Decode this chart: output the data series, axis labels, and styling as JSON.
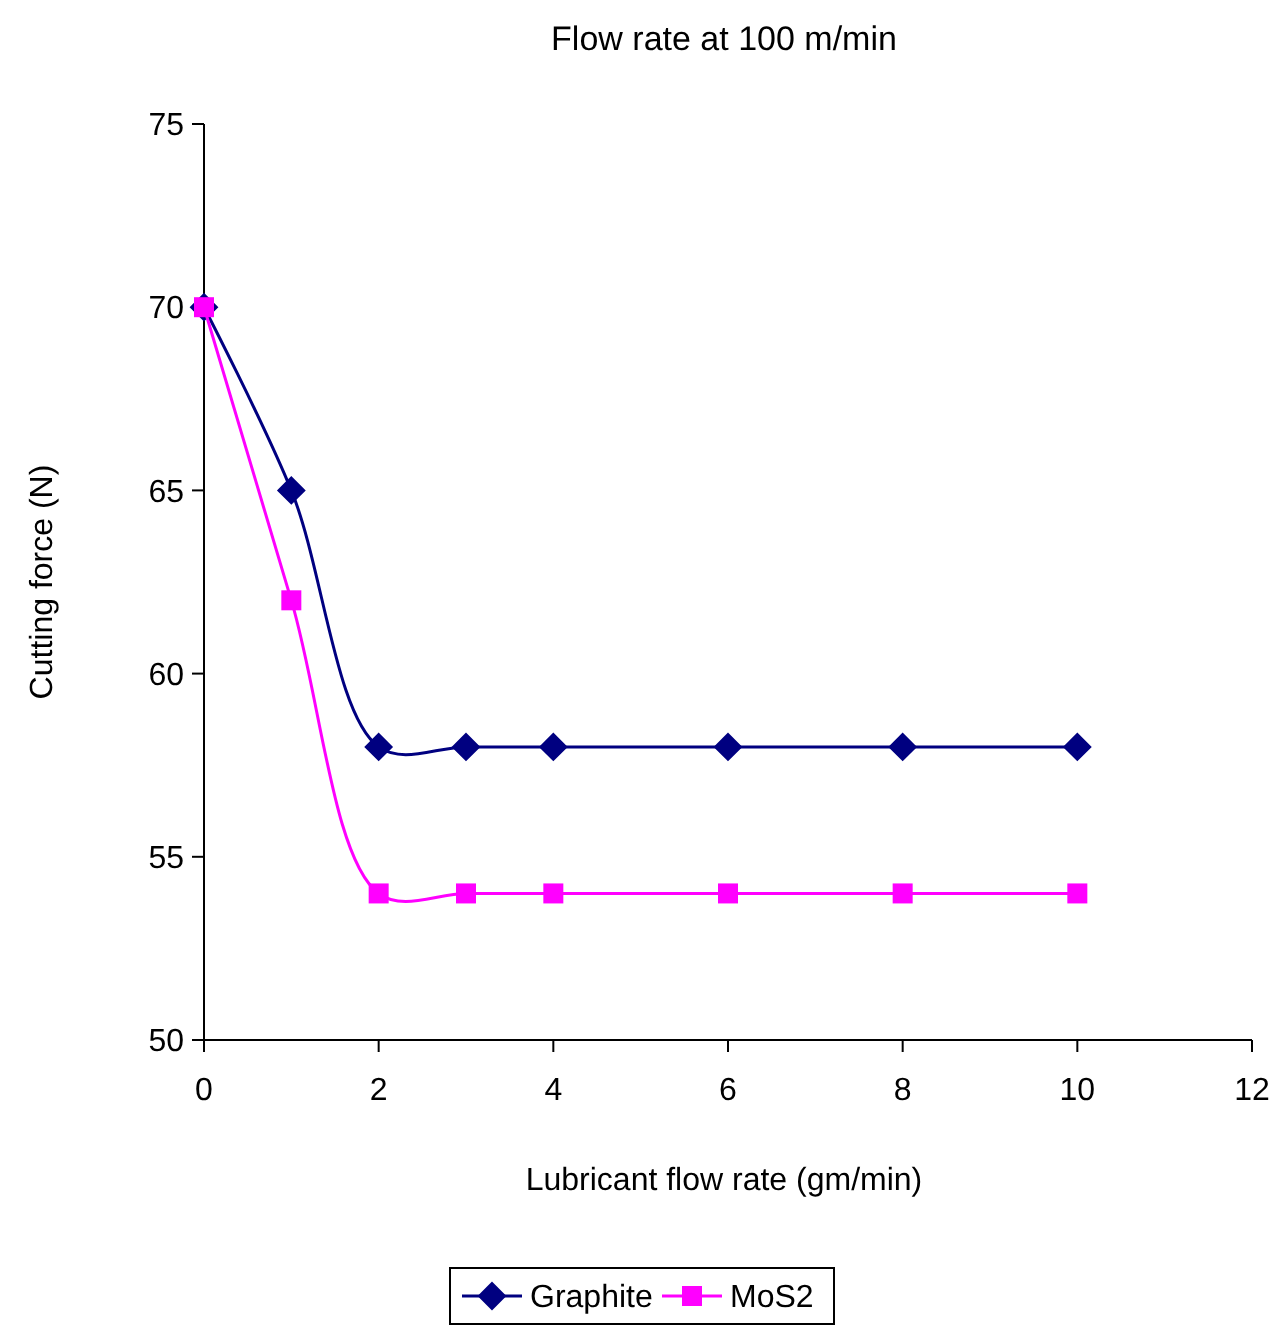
{
  "chart_data": {
    "type": "line",
    "title": "Flow rate at 100 m/min",
    "xlabel": "Lubricant flow rate (gm/min)",
    "ylabel": "Cutting force (N)",
    "x": [
      0,
      1,
      2,
      3,
      4,
      6,
      8,
      10
    ],
    "series": [
      {
        "name": "Graphite",
        "color": "#000080",
        "marker": "diamond",
        "values": [
          70,
          65,
          58,
          58,
          58,
          58,
          58,
          58
        ]
      },
      {
        "name": "MoS2",
        "color": "#ff00ff",
        "marker": "square",
        "values": [
          70,
          62,
          54,
          54,
          54,
          54,
          54,
          54
        ]
      }
    ],
    "xlim": [
      0,
      12
    ],
    "xticks": [
      0,
      2,
      4,
      6,
      8,
      10,
      12
    ],
    "ylim": [
      50,
      75
    ],
    "yticks": [
      50,
      55,
      60,
      65,
      70,
      75
    ],
    "grid": false,
    "legend": "bottom",
    "line_style": "solid"
  }
}
